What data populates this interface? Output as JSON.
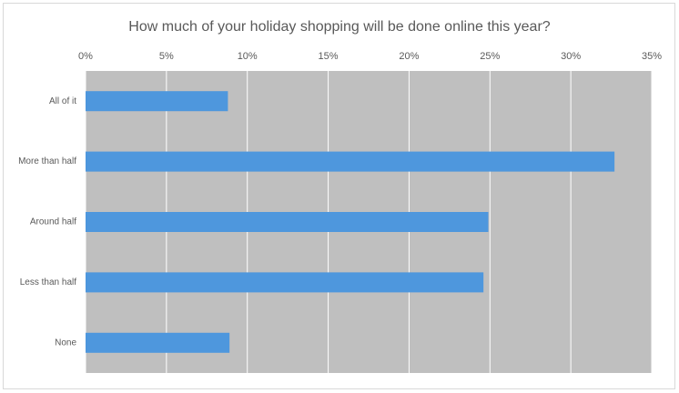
{
  "chart_data": {
    "type": "bar",
    "orientation": "horizontal",
    "title": "How much of your holiday shopping will be done online this year?",
    "categories": [
      "All of it",
      "More than half",
      "Around half",
      "Less than half",
      "None"
    ],
    "values": [
      8.8,
      32.7,
      24.9,
      24.6,
      8.9
    ],
    "color": "#4e97dd",
    "xlim": [
      0,
      35
    ],
    "xticks": [
      {
        "value": 0,
        "label": "0%"
      },
      {
        "value": 5,
        "label": "5%"
      },
      {
        "value": 10,
        "label": "10%"
      },
      {
        "value": 15,
        "label": "15%"
      },
      {
        "value": 20,
        "label": "20%"
      },
      {
        "value": 25,
        "label": "25%"
      },
      {
        "value": 30,
        "label": "30%"
      },
      {
        "value": 35,
        "label": "35%"
      }
    ],
    "grid": true
  }
}
